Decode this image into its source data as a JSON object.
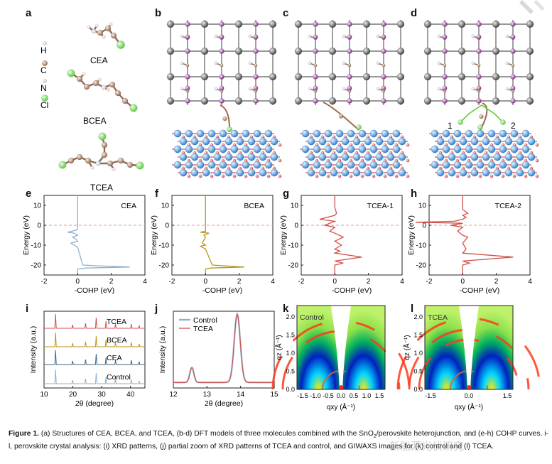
{
  "panels": {
    "a": "a",
    "b": "b",
    "c": "c",
    "d": "d",
    "e": "e",
    "f": "f",
    "g": "g",
    "h": "h",
    "i": "i",
    "j": "j",
    "k": "k",
    "l": "l"
  },
  "legend_a": {
    "items": [
      {
        "label": "H",
        "color": "#f2c9c9"
      },
      {
        "label": "C",
        "color": "#9a6a4a"
      },
      {
        "label": "N",
        "color": "#c9c9e6"
      },
      {
        "label": "Cl",
        "color": "#5ccf3b"
      }
    ],
    "molecules": [
      "CEA",
      "BCEA",
      "TCEA"
    ]
  },
  "model_d_labels": [
    "1",
    "2"
  ],
  "cohp_axes": {
    "ylabel": "Energy (eV)",
    "xlabel": "-COHP (eV)",
    "yticks": [
      "10",
      "0",
      "-10",
      "-20"
    ],
    "xticks": [
      "-2",
      "0",
      "2",
      "4"
    ]
  },
  "chart_data": [
    {
      "type": "line",
      "panel": "e",
      "title": "CEA",
      "xlabel": "-COHP (eV)",
      "ylabel": "Energy (eV)",
      "xlim": [
        -2,
        4
      ],
      "ylim": [
        -25,
        15
      ],
      "color": "#8fb0cc",
      "x": [
        0,
        0,
        0,
        0,
        -0.1,
        -0.6,
        -0.2,
        0,
        -0.3,
        -0.1,
        0,
        -0.4,
        0,
        0.3,
        1.5,
        3.1,
        0.5,
        0,
        0
      ],
      "y": [
        15,
        5,
        1,
        -2,
        -2.5,
        -3.5,
        -4,
        -5,
        -6,
        -7,
        -8,
        -9,
        -11,
        -20,
        -20.5,
        -21,
        -21.5,
        -22,
        -25
      ]
    },
    {
      "type": "line",
      "panel": "f",
      "title": "BCEA",
      "xlabel": "-COHP (eV)",
      "ylabel": "Energy (eV)",
      "xlim": [
        -2,
        4
      ],
      "ylim": [
        -25,
        15
      ],
      "color": "#b8961c",
      "x": [
        0,
        0,
        0,
        -0.3,
        0.2,
        -0.1,
        0,
        -0.2,
        0,
        -0.3,
        0,
        0.4,
        1.8,
        2.3,
        0.3,
        0,
        0
      ],
      "y": [
        15,
        5,
        -3,
        -3.5,
        -4,
        -5,
        -6,
        -9,
        -10,
        -10.5,
        -12,
        -20,
        -20.8,
        -21,
        -21.5,
        -22,
        -25
      ]
    },
    {
      "type": "line",
      "panel": "g",
      "title": "TCEA-1",
      "xlabel": "-COHP (eV)",
      "ylabel": "Energy (eV)",
      "xlim": [
        -2,
        4
      ],
      "ylim": [
        -25,
        15
      ],
      "color": "#d0504a",
      "x": [
        0,
        0,
        0.1,
        0,
        -0.9,
        0,
        -0.6,
        0,
        -0.3,
        0,
        0.5,
        0,
        0.4,
        0,
        0.3,
        0,
        1.6,
        0,
        0.5,
        0,
        0
      ],
      "y": [
        15,
        9,
        6,
        5,
        3,
        2,
        0,
        -1,
        -3,
        -4,
        -6,
        -8,
        -10,
        -12,
        -13,
        -14,
        -16,
        -18,
        -19,
        -20,
        -25
      ]
    },
    {
      "type": "line",
      "panel": "h",
      "title": "TCEA-2",
      "xlabel": "-COHP (eV)",
      "ylabel": "Energy (eV)",
      "xlim": [
        -2,
        4
      ],
      "ylim": [
        -25,
        15
      ],
      "color": "#d0504a",
      "x": [
        0,
        0,
        0.3,
        0,
        0.2,
        0,
        -0.5,
        -2.8,
        0,
        -0.7,
        0,
        -0.3,
        0,
        0.3,
        0,
        0.2,
        0,
        3.0,
        0,
        0.4,
        0,
        0
      ],
      "y": [
        15,
        8,
        6,
        5,
        4,
        3,
        2,
        1.5,
        1,
        0,
        -1,
        -3,
        -5,
        -6,
        -9,
        -12,
        -14,
        -16,
        -18,
        -19,
        -20,
        -25
      ]
    },
    {
      "type": "line",
      "panel": "i",
      "xlabel": "2θ (degree)",
      "ylabel": "Intensity (a.u.)",
      "xlim": [
        10,
        45
      ],
      "xticks": [
        "10",
        "20",
        "30",
        "40"
      ],
      "series": [
        {
          "name": "TCEA",
          "color": "#d0504a"
        },
        {
          "name": "BCEA",
          "color": "#b8961c"
        },
        {
          "name": "CEA",
          "color": "#3d6580"
        },
        {
          "name": "Control",
          "color": "#8fb0cc"
        }
      ],
      "peaks_x": [
        14.0,
        19.9,
        24.4,
        28.1,
        31.5,
        34.8,
        40.3,
        43.0
      ],
      "peaks_rel": [
        1.0,
        0.25,
        0.35,
        0.75,
        0.5,
        0.3,
        0.3,
        0.2
      ]
    },
    {
      "type": "line",
      "panel": "j",
      "xlabel": "2θ (degree)",
      "ylabel": "Intensity (a.u.)",
      "xlim": [
        12,
        15
      ],
      "xticks": [
        "12",
        "13",
        "14",
        "15"
      ],
      "series": [
        {
          "name": "Control",
          "color": "#8fb0cc"
        },
        {
          "name": "TCEA",
          "color": "#d0504a"
        }
      ],
      "peaks_x": [
        12.55,
        13.9
      ],
      "peaks_rel": [
        0.22,
        1.0
      ]
    },
    {
      "type": "heatmap",
      "panel": "k",
      "title": "Control",
      "xlabel": "qxy (Å⁻¹)",
      "ylabel": "qz (Å⁻¹)",
      "xticks": [
        "-1.5",
        "-1.0",
        "-0.5",
        "0.0",
        "0.5",
        "1.0",
        "1.5"
      ],
      "yticks": [
        "0.0",
        "0.5",
        "1.0",
        "1.5",
        "2.0"
      ]
    },
    {
      "type": "heatmap",
      "panel": "l",
      "title": "TCEA",
      "xlabel": "qxy (Å⁻¹)",
      "ylabel": "qz (Å⁻¹)",
      "xticks": [
        "-1.5",
        "0.0",
        "1.5"
      ],
      "yticks": [
        "0.0",
        "0.5",
        "1.0",
        "1.5",
        "2.0"
      ]
    }
  ],
  "caption": {
    "label": "Figure 1.",
    "line1": "(a) Structures of CEA, BCEA, and TCEA, (b-d) DFT models of three molecules combined with the SnO",
    "line1b": "/perovskite heterojunction,",
    "line2": "and (e-h) COHP curves. i-l, perovskite crystal analysis: (i) XRD patterns, (j) partial zoom of XRD patterns of TCEA and control, and GIWAXS",
    "line3": "images for (k) control and (l) TCEA.",
    "sub": "2"
  },
  "watermark": "新能源光伏研究"
}
